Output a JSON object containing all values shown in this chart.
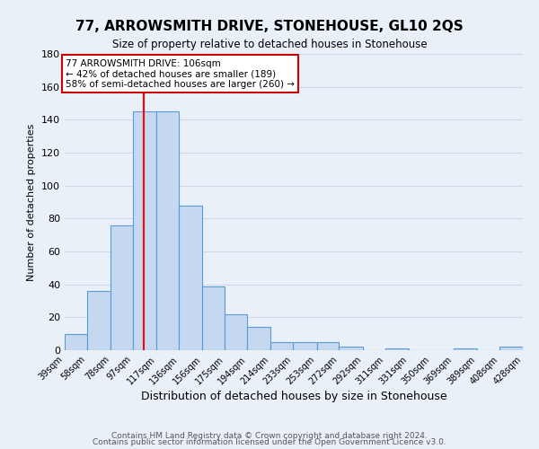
{
  "title": "77, ARROWSMITH DRIVE, STONEHOUSE, GL10 2QS",
  "subtitle": "Size of property relative to detached houses in Stonehouse",
  "xlabel": "Distribution of detached houses by size in Stonehouse",
  "ylabel": "Number of detached properties",
  "footer_line1": "Contains HM Land Registry data © Crown copyright and database right 2024.",
  "footer_line2": "Contains public sector information licensed under the Open Government Licence v3.0.",
  "bin_labels": [
    "39sqm",
    "58sqm",
    "78sqm",
    "97sqm",
    "117sqm",
    "136sqm",
    "156sqm",
    "175sqm",
    "194sqm",
    "214sqm",
    "233sqm",
    "253sqm",
    "272sqm",
    "292sqm",
    "311sqm",
    "331sqm",
    "350sqm",
    "369sqm",
    "389sqm",
    "408sqm",
    "428sqm"
  ],
  "bin_edges": [
    39,
    58,
    78,
    97,
    117,
    136,
    156,
    175,
    194,
    214,
    233,
    253,
    272,
    292,
    311,
    331,
    350,
    369,
    389,
    408,
    428
  ],
  "bar_heights": [
    10,
    36,
    76,
    145,
    145,
    88,
    39,
    22,
    14,
    5,
    5,
    5,
    2,
    0,
    1,
    0,
    0,
    1,
    0,
    2
  ],
  "bar_color": "#c5d8f0",
  "bar_edge_color": "#5b9bd5",
  "red_line_x": 106,
  "ylim": [
    0,
    180
  ],
  "yticks": [
    0,
    20,
    40,
    60,
    80,
    100,
    120,
    140,
    160,
    180
  ],
  "annotation_title": "77 ARROWSMITH DRIVE: 106sqm",
  "annotation_line1": "← 42% of detached houses are smaller (189)",
  "annotation_line2": "58% of semi-detached houses are larger (260) →",
  "annotation_box_color": "#ffffff",
  "annotation_box_edge_color": "#cc0000",
  "grid_color": "#d0d8e8",
  "bg_color": "#eaf0f8",
  "title_bg_color": "#ffffff"
}
